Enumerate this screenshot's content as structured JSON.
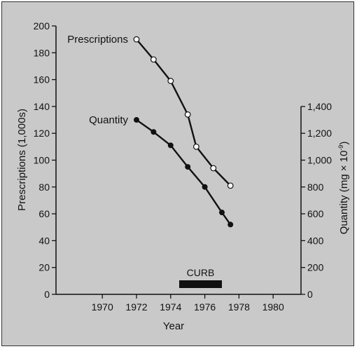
{
  "chart_data": {
    "type": "line",
    "xlabel": "Year",
    "ylabel_left": "Prescriptions (1,000s)",
    "ylabel_right": "Quantity (mg × 10",
    "ylabel_right_exponent": "-9",
    "x_ticks": [
      1970,
      1972,
      1974,
      1976,
      1978,
      1980
    ],
    "x_tick_labels": [
      "1970",
      "1972",
      "1974",
      "1976",
      "1978",
      "1980"
    ],
    "y_left_ticks": [
      0,
      20,
      40,
      60,
      80,
      100,
      120,
      140,
      160,
      180,
      200
    ],
    "y_left_tick_labels": [
      "0",
      "20",
      "40",
      "60",
      "80",
      "100",
      "120",
      "140",
      "160",
      "180",
      "200"
    ],
    "y_left_lim": [
      0,
      200
    ],
    "y_right_ticks": [
      0,
      200,
      400,
      600,
      800,
      1000,
      1200,
      1400
    ],
    "y_right_tick_labels": [
      "0",
      "200",
      "400",
      "600",
      "800",
      "1,000",
      "1,200",
      "1,400"
    ],
    "y_right_lim": [
      0,
      2000
    ],
    "series": [
      {
        "name": "Prescriptions",
        "axis": "left",
        "marker": "open",
        "x": [
          1972,
          1973,
          1974,
          1975,
          1975.5,
          1976.5,
          1977.5
        ],
        "y": [
          190,
          175,
          159,
          134,
          110,
          94,
          81
        ]
      },
      {
        "name": "Quantity",
        "axis": "right",
        "marker": "filled",
        "x": [
          1972,
          1973,
          1974,
          1975,
          1976,
          1977,
          1977.5
        ],
        "y": [
          1300,
          1210,
          1110,
          950,
          800,
          610,
          520
        ]
      }
    ],
    "annotation": {
      "label": "CURB",
      "x_start": 1974.5,
      "x_end": 1977
    },
    "grid": false,
    "colors": {
      "background": "#c9c9c9",
      "ink": "#111111"
    }
  }
}
